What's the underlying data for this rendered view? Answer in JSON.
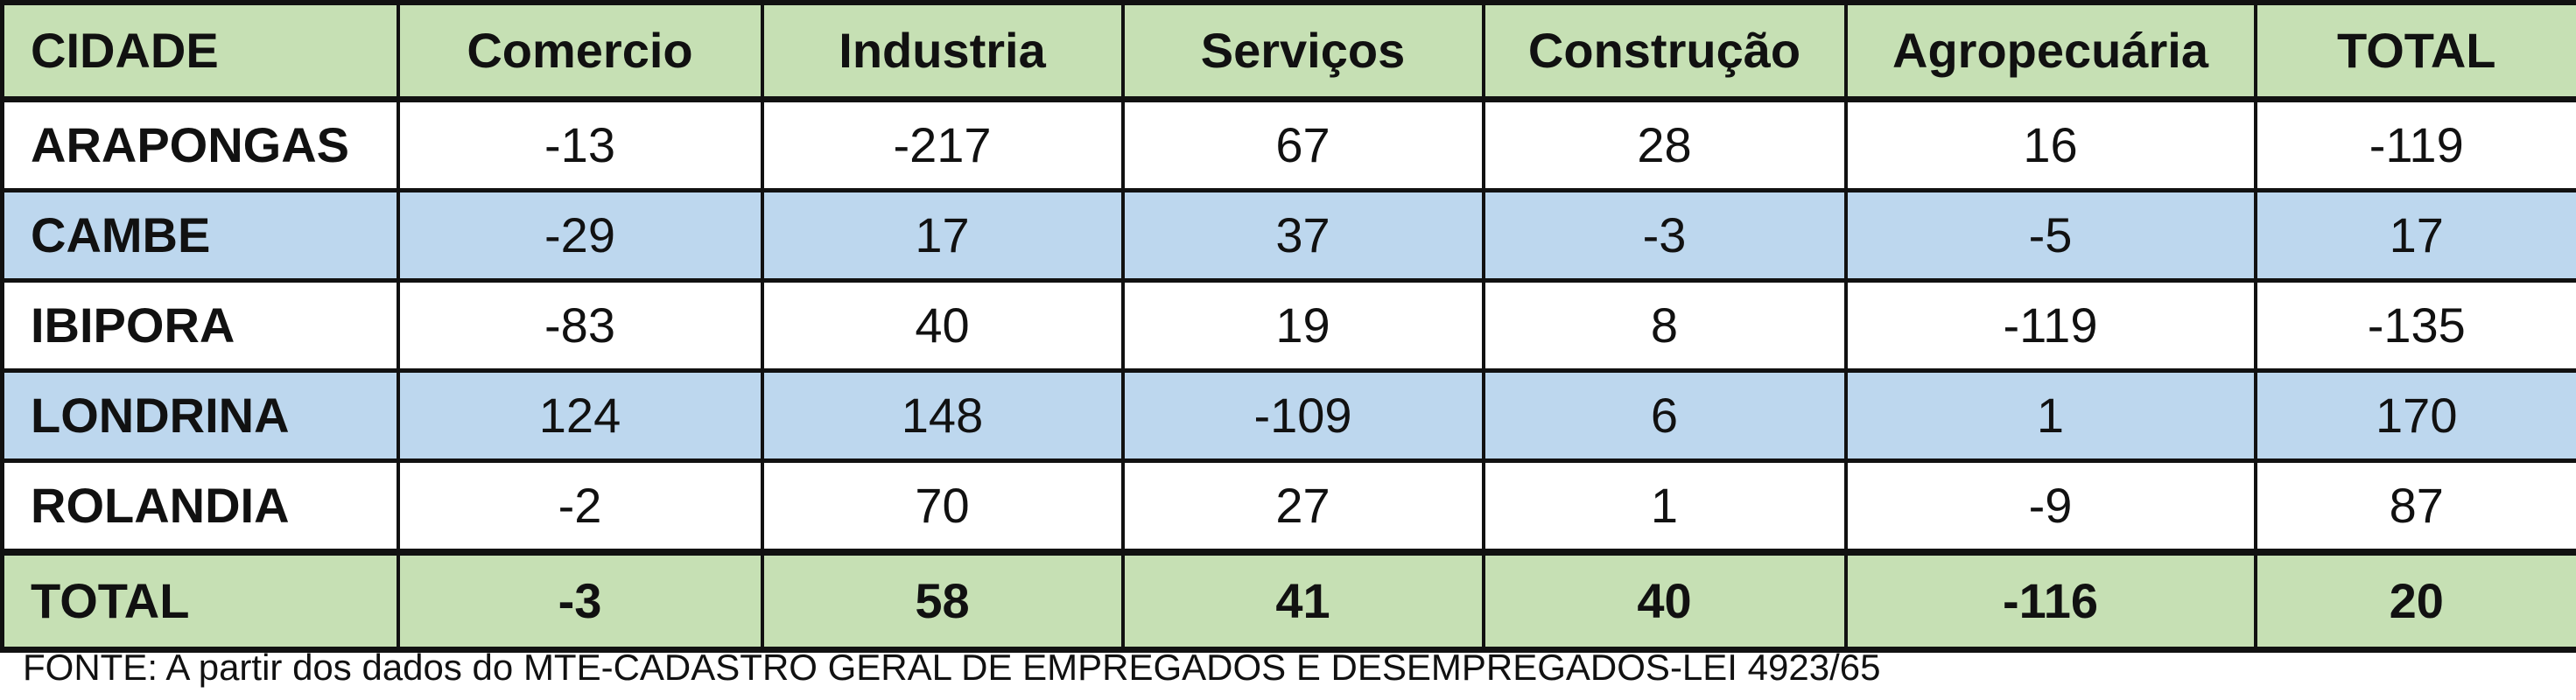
{
  "chart_data": {
    "type": "table",
    "columns": [
      "CIDADE",
      "Comercio",
      "Industria",
      "Serviços",
      "Construção",
      "Agropecuária",
      "TOTAL"
    ],
    "rows": [
      [
        "ARAPONGAS",
        "-13",
        "-217",
        "67",
        "28",
        "16",
        "-119"
      ],
      [
        "CAMBE",
        "-29",
        "17",
        "37",
        "-3",
        "-5",
        "17"
      ],
      [
        "IBIPORA",
        "-83",
        "40",
        "19",
        "8",
        "-119",
        "-135"
      ],
      [
        "LONDRINA",
        "124",
        "148",
        "-109",
        "6",
        "1",
        "170"
      ],
      [
        "ROLANDIA",
        "-2",
        "70",
        "27",
        "1",
        "-9",
        "87"
      ]
    ],
    "total_row": [
      "TOTAL",
      "-3",
      "58",
      "41",
      "40",
      "-116",
      "20"
    ],
    "source": "FONTE: A partir dos dados do MTE-CADASTRO GERAL DE EMPREGADOS E DESEMPREGADOS-LEI 4923/65"
  },
  "colors": {
    "header_bg": "#c6e0b4",
    "band_bg": "#bdd7ee",
    "row_bg": "#ffffff",
    "border": "#111111"
  }
}
